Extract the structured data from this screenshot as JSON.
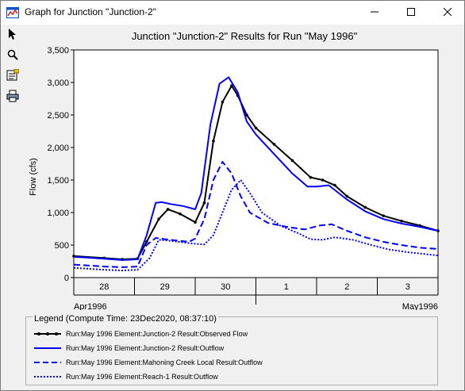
{
  "window": {
    "title": "Graph for Junction \"Junction-2\"",
    "icon": "hec-hms-graph-icon",
    "controls": [
      "minimize-icon",
      "maximize-icon",
      "close-icon"
    ]
  },
  "toolbar": {
    "tools": [
      "pointer-icon",
      "zoom-icon",
      "properties-icon",
      "print-icon"
    ]
  },
  "legend": {
    "title": "Legend (Compute Time: 23Dec2020, 08:37:10)",
    "entries": [
      "Run:May 1996 Element:Junction-2 Result:Observed Flow",
      "Run:May 1996 Element:Junction-2 Result:Outflow",
      "Run:May 1996 Element:Mahoning Creek Local Result:Outflow",
      "Run:May 1996 Element:Reach-1 Result:Outflow"
    ]
  },
  "chart_data": {
    "type": "line",
    "title": "Junction \"Junction-2\" Results for Run \"May 1996\"",
    "ylabel": "Flow (cfs)",
    "xlabel": "",
    "ylim": [
      0,
      3500
    ],
    "xlim": [
      0,
      6
    ],
    "yticks": [
      "0",
      "500",
      "1,000",
      "1,500",
      "2,000",
      "2,500",
      "3,000",
      "3,500"
    ],
    "ytick_values": [
      0,
      500,
      1000,
      1500,
      2000,
      2500,
      3000,
      3500
    ],
    "day_labels": [
      "28",
      "29",
      "30",
      "1",
      "2",
      "3"
    ],
    "month_labels": [
      "Apr1996",
      "May1996"
    ],
    "x_units_note": "",
    "grid": false,
    "legend_placement": "bottom",
    "colors": {
      "observed": "#000000",
      "series": "#0000ff"
    },
    "series": [
      {
        "name": "Run:May 1996 Element:Junction-2 Result:Observed Flow",
        "style": "solid-markers",
        "x": [
          0,
          0.5,
          0.8,
          1.05,
          1.2,
          1.4,
          1.55,
          1.75,
          2.0,
          2.15,
          2.3,
          2.45,
          2.6,
          2.7,
          2.85,
          3.0,
          3.3,
          3.6,
          3.9,
          4.1,
          4.3,
          4.5,
          4.8,
          5.1,
          5.4,
          5.7,
          6.0
        ],
        "y": [
          330,
          300,
          280,
          290,
          550,
          900,
          1050,
          980,
          850,
          1150,
          2100,
          2700,
          2950,
          2800,
          2500,
          2300,
          2050,
          1800,
          1540,
          1500,
          1420,
          1250,
          1080,
          950,
          870,
          800,
          720
        ]
      },
      {
        "name": "Run:May 1996 Element:Junction-2 Result:Outflow",
        "style": "solid",
        "x": [
          0,
          0.5,
          0.8,
          1.05,
          1.2,
          1.35,
          1.45,
          1.6,
          1.8,
          2.0,
          2.1,
          2.25,
          2.4,
          2.55,
          2.7,
          2.85,
          3.0,
          3.3,
          3.6,
          3.85,
          4.0,
          4.2,
          4.5,
          4.8,
          5.1,
          5.4,
          5.7,
          6.0
        ],
        "y": [
          320,
          290,
          270,
          280,
          650,
          1150,
          1160,
          1130,
          1100,
          1050,
          1300,
          2350,
          2980,
          3080,
          2850,
          2400,
          2200,
          1900,
          1600,
          1400,
          1400,
          1420,
          1200,
          1020,
          900,
          830,
          780,
          720
        ]
      },
      {
        "name": "Run:May 1996 Element:Mahoning Creek Local Result:Outflow",
        "style": "dashed",
        "x": [
          0,
          0.5,
          0.8,
          1.05,
          1.2,
          1.35,
          1.5,
          1.7,
          1.9,
          2.0,
          2.15,
          2.3,
          2.45,
          2.6,
          2.75,
          2.9,
          3.2,
          3.5,
          3.8,
          4.05,
          4.25,
          4.5,
          4.8,
          5.1,
          5.4,
          5.7,
          6.0
        ],
        "y": [
          200,
          170,
          160,
          170,
          500,
          610,
          590,
          570,
          550,
          600,
          900,
          1500,
          1780,
          1600,
          1250,
          1000,
          840,
          780,
          740,
          800,
          820,
          720,
          620,
          550,
          500,
          460,
          440
        ]
      },
      {
        "name": "Run:May 1996 Element:Reach-1 Result:Outflow",
        "style": "dotted",
        "x": [
          0,
          0.5,
          0.8,
          1.05,
          1.25,
          1.4,
          1.55,
          1.8,
          2.0,
          2.15,
          2.3,
          2.45,
          2.6,
          2.75,
          2.9,
          3.1,
          3.4,
          3.7,
          3.9,
          4.1,
          4.3,
          4.6,
          4.9,
          5.2,
          5.5,
          5.8,
          6.0
        ],
        "y": [
          150,
          120,
          110,
          120,
          300,
          580,
          570,
          540,
          520,
          510,
          650,
          1000,
          1350,
          1500,
          1300,
          1000,
          800,
          680,
          590,
          580,
          620,
          580,
          500,
          430,
          390,
          360,
          340
        ]
      }
    ]
  }
}
